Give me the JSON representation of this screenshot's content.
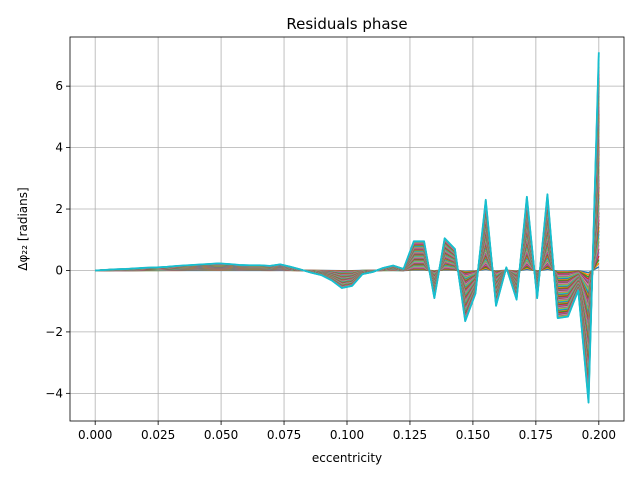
{
  "chart_data": {
    "type": "line",
    "title": "Residuals phase",
    "xlabel": "eccentricity",
    "ylabel": "Δφ₂₂ [radians]",
    "xlim": [
      -0.01,
      0.21
    ],
    "ylim": [
      -4.9,
      7.6
    ],
    "xticks": [
      {
        "value": 0.0,
        "label": "0.000"
      },
      {
        "value": 0.025,
        "label": "0.025"
      },
      {
        "value": 0.05,
        "label": "0.050"
      },
      {
        "value": 0.075,
        "label": "0.075"
      },
      {
        "value": 0.1,
        "label": "0.100"
      },
      {
        "value": 0.125,
        "label": "0.125"
      },
      {
        "value": 0.15,
        "label": "0.150"
      },
      {
        "value": 0.175,
        "label": "0.175"
      },
      {
        "value": 0.2,
        "label": "0.200"
      }
    ],
    "yticks": [
      {
        "value": -4,
        "label": "−4"
      },
      {
        "value": -2,
        "label": "−2"
      },
      {
        "value": 0,
        "label": "0"
      },
      {
        "value": 2,
        "label": "2"
      },
      {
        "value": 4,
        "label": "4"
      },
      {
        "value": 6,
        "label": "6"
      }
    ],
    "grid": true,
    "x": [
      0.0,
      0.00408,
      0.00816,
      0.01224,
      0.01633,
      0.02041,
      0.02449,
      0.02857,
      0.03265,
      0.03673,
      0.04082,
      0.0449,
      0.04898,
      0.05306,
      0.05714,
      0.06122,
      0.06531,
      0.06939,
      0.07347,
      0.07755,
      0.08163,
      0.08571,
      0.0898,
      0.09388,
      0.09796,
      0.10204,
      0.10612,
      0.1102,
      0.11429,
      0.11837,
      0.12245,
      0.12653,
      0.13061,
      0.13469,
      0.13878,
      0.14286,
      0.14694,
      0.15102,
      0.1551,
      0.15918,
      0.16327,
      0.16735,
      0.17143,
      0.17551,
      0.17959,
      0.18367,
      0.18776,
      0.19184,
      0.19592,
      0.2
    ],
    "envelope": [
      0.0,
      0.02,
      0.04,
      0.05,
      0.07,
      0.09,
      0.1,
      0.12,
      0.15,
      0.17,
      0.19,
      0.21,
      0.23,
      0.21,
      0.18,
      0.17,
      0.17,
      0.15,
      0.2,
      0.12,
      0.03,
      -0.07,
      -0.15,
      -0.32,
      -0.57,
      -0.5,
      -0.12,
      -0.05,
      0.08,
      0.16,
      0.05,
      0.95,
      0.95,
      -0.9,
      1.05,
      0.7,
      -1.65,
      -0.75,
      2.3,
      -1.15,
      0.1,
      -0.95,
      2.4,
      -0.9,
      2.48,
      -1.55,
      -1.5,
      -0.65,
      -4.3,
      7.1
    ],
    "series_colors": [
      "#1f77b4",
      "#ff7f0e",
      "#2ca02c",
      "#d62728",
      "#9467bd",
      "#8c564b",
      "#e377c2",
      "#7f7f7f",
      "#bcbd22",
      "#17becf"
    ]
  }
}
